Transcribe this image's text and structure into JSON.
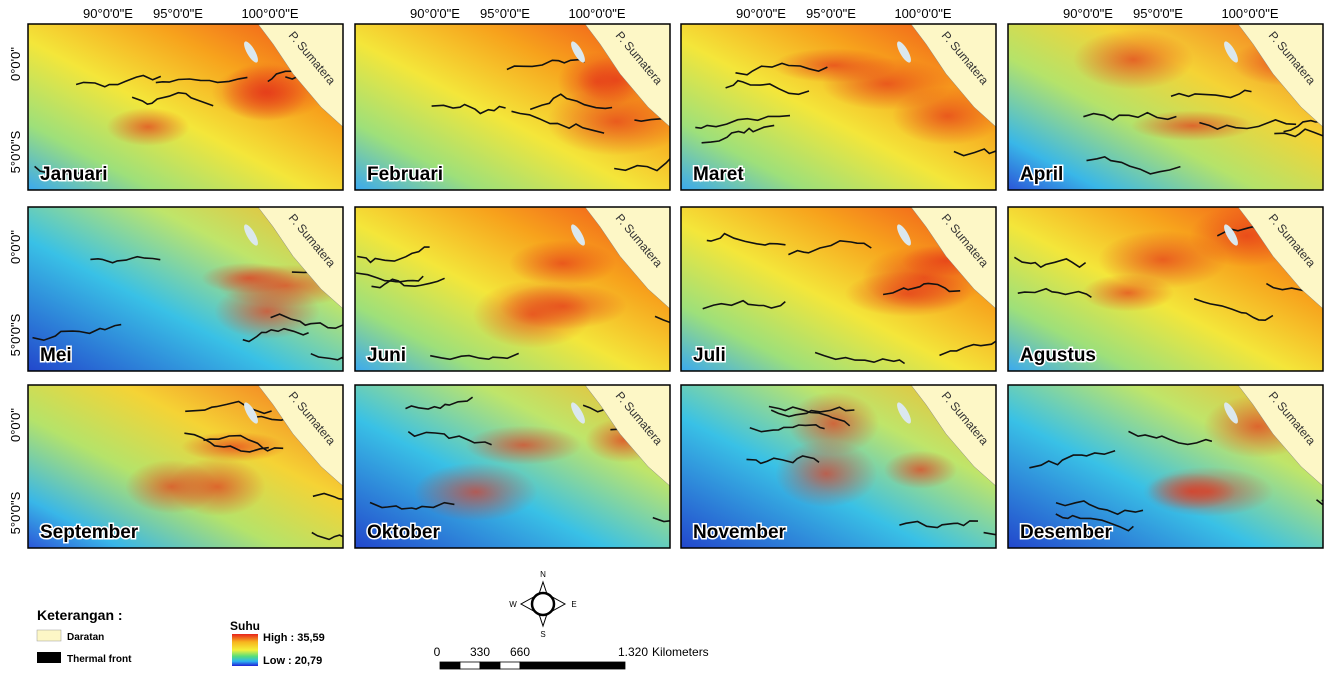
{
  "longitude_labels": [
    "90°0'0\"E",
    "95°0'0\"E",
    "100°0'0\"E"
  ],
  "latitude_labels": [
    "0°0'0\"",
    "5°0'0\"S"
  ],
  "panels": [
    {
      "month": "Januari",
      "land_label": "P. Sumatera"
    },
    {
      "month": "Februari",
      "land_label": "P. Sumatera"
    },
    {
      "month": "Maret",
      "land_label": "P. Sumatera"
    },
    {
      "month": "April",
      "land_label": "P. Sumatera"
    },
    {
      "month": "Mei",
      "land_label": "P. Sumatera"
    },
    {
      "month": "Juni",
      "land_label": "P. Sumatera"
    },
    {
      "month": "Juli",
      "land_label": "P. Sumatera"
    },
    {
      "month": "Agustus",
      "land_label": "P. Sumatera"
    },
    {
      "month": "September",
      "land_label": "P. Sumatera"
    },
    {
      "month": "Oktober",
      "land_label": "P. Sumatera"
    },
    {
      "month": "November",
      "land_label": "P. Sumatera"
    },
    {
      "month": "Desember",
      "land_label": "P. Sumatera"
    }
  ],
  "legend": {
    "title": "Keterangan :",
    "items": [
      "Daratan",
      "Thermal front"
    ]
  },
  "color_scale": {
    "title": "Suhu",
    "high": "High : 35,59",
    "low": "Low : 20,79"
  },
  "compass": {
    "n": "N",
    "s": "S",
    "e": "E",
    "w": "W"
  },
  "scale_bar": {
    "labels": [
      "0",
      "330",
      "660",
      "1.320"
    ],
    "unit": "Kilometers"
  }
}
